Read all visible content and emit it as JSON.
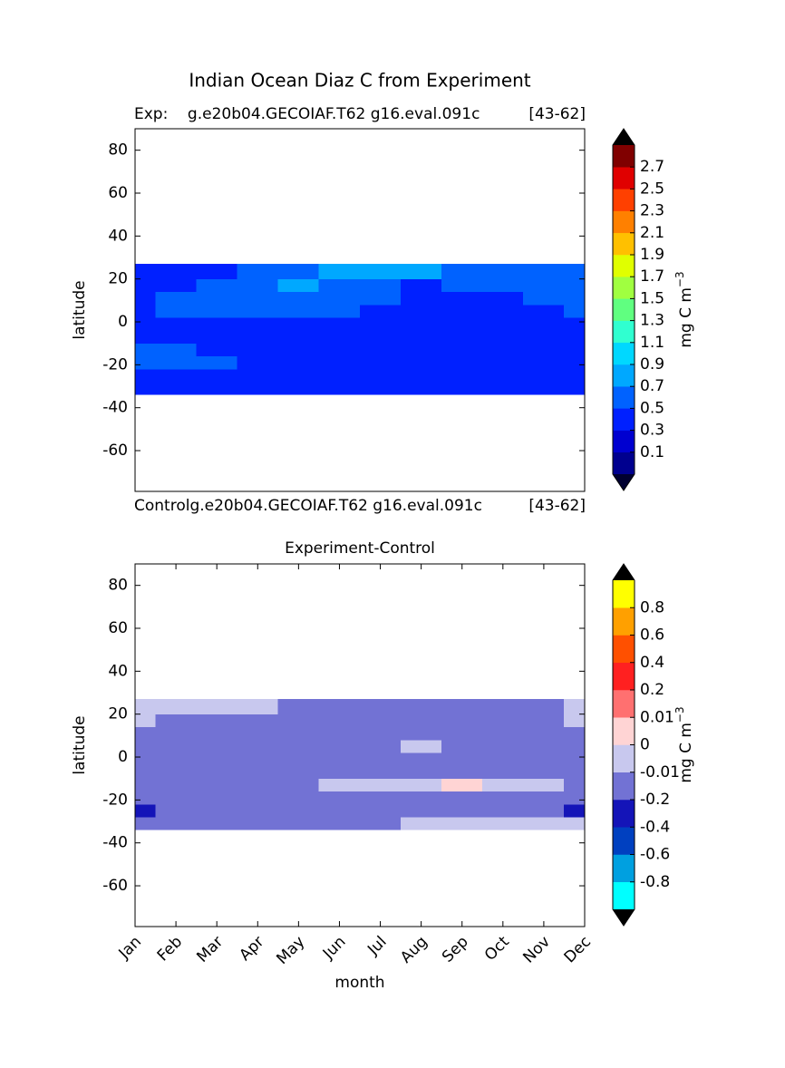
{
  "title": "Indian Ocean Diaz C from Experiment",
  "chart_data": [
    {
      "type": "contour",
      "title_left": "Exp:    g.e20b04.GECOIAF.T62 g16.eval.091c",
      "title_right": "[43-62]",
      "ylabel": "latitude",
      "xlim": [
        0,
        11
      ],
      "ylim": [
        -79,
        90
      ],
      "yticks": [
        -60,
        -40,
        -20,
        0,
        20,
        40,
        60,
        80
      ],
      "y_edges": [
        -34,
        -28,
        -22,
        -16,
        -10,
        -4,
        2,
        8,
        14,
        20,
        27
      ],
      "values": [
        [
          0.4,
          0.4,
          0.4,
          0.4,
          0.4,
          0.4,
          0.4,
          0.4,
          0.4,
          0.4,
          0.4,
          0.4
        ],
        [
          0.4,
          0.4,
          0.4,
          0.4,
          0.4,
          0.4,
          0.4,
          0.4,
          0.4,
          0.4,
          0.4,
          0.4
        ],
        [
          0.6,
          0.6,
          0.6,
          0.4,
          0.4,
          0.4,
          0.4,
          0.4,
          0.4,
          0.4,
          0.4,
          0.4
        ],
        [
          0.6,
          0.6,
          0.4,
          0.4,
          0.4,
          0.4,
          0.4,
          0.4,
          0.4,
          0.4,
          0.4,
          0.4
        ],
        [
          0.4,
          0.4,
          0.4,
          0.4,
          0.4,
          0.4,
          0.4,
          0.4,
          0.4,
          0.4,
          0.4,
          0.4
        ],
        [
          0.4,
          0.4,
          0.4,
          0.4,
          0.4,
          0.4,
          0.4,
          0.4,
          0.4,
          0.4,
          0.4,
          0.4
        ],
        [
          0.4,
          0.6,
          0.6,
          0.6,
          0.6,
          0.6,
          0.4,
          0.4,
          0.4,
          0.4,
          0.4,
          0.6
        ],
        [
          0.4,
          0.6,
          0.6,
          0.6,
          0.6,
          0.6,
          0.6,
          0.4,
          0.4,
          0.4,
          0.6,
          0.6
        ],
        [
          0.4,
          0.4,
          0.6,
          0.6,
          0.8,
          0.6,
          0.6,
          0.4,
          0.6,
          0.6,
          0.6,
          0.6
        ],
        [
          0.4,
          0.4,
          0.4,
          0.6,
          0.6,
          0.8,
          0.8,
          0.8,
          0.6,
          0.6,
          0.6,
          0.6
        ]
      ],
      "cticks": [
        0.1,
        0.3,
        0.5,
        0.7,
        0.9,
        1.1,
        1.3,
        1.5,
        1.7,
        1.9,
        2.1,
        2.3,
        2.5,
        2.7
      ],
      "colors": [
        "#00008f",
        "#0000d0",
        "#0020ff",
        "#0062ff",
        "#00a8ff",
        "#00d8ff",
        "#30ffd0",
        "#60ff80",
        "#a0ff40",
        "#e0ff00",
        "#ffc000",
        "#ff8000",
        "#ff4000",
        "#e00000",
        "#800000"
      ],
      "extend_colors": [
        "#000030",
        "#000000"
      ],
      "colorbar_label": "mg C m",
      "colorbar_label_sup": "−3"
    },
    {
      "type": "contour",
      "note_left": "Controlg.e20b04.GECOIAF.T62 g16.eval.091c",
      "note_right": "[43-62]",
      "title": "Experiment-Control",
      "xlabel": "month",
      "ylabel": "latitude",
      "categories": [
        "Jan",
        "Feb",
        "Mar",
        "Apr",
        "May",
        "Jun",
        "Jul",
        "Aug",
        "Sep",
        "Oct",
        "Nov",
        "Dec"
      ],
      "xlim": [
        0,
        11
      ],
      "ylim": [
        -79,
        90
      ],
      "yticks": [
        -60,
        -40,
        -20,
        0,
        20,
        40,
        60,
        80
      ],
      "y_edges": [
        -34,
        -28,
        -22,
        -16,
        -10,
        -4,
        2,
        8,
        14,
        20,
        27
      ],
      "values": [
        [
          -0.1,
          -0.1,
          -0.1,
          -0.1,
          -0.1,
          -0.1,
          -0.1,
          -0.005,
          -0.005,
          -0.005,
          -0.005,
          -0.005
        ],
        [
          -0.3,
          -0.1,
          -0.1,
          -0.1,
          -0.1,
          -0.1,
          -0.1,
          -0.1,
          -0.1,
          -0.1,
          -0.1,
          -0.3
        ],
        [
          -0.1,
          -0.1,
          -0.1,
          -0.1,
          -0.1,
          -0.1,
          -0.1,
          -0.1,
          -0.1,
          -0.1,
          -0.1,
          -0.1
        ],
        [
          -0.1,
          -0.1,
          -0.1,
          -0.1,
          -0.1,
          -0.005,
          -0.005,
          -0.005,
          0.005,
          -0.005,
          -0.005,
          -0.1
        ],
        [
          -0.1,
          -0.1,
          -0.1,
          -0.1,
          -0.1,
          -0.1,
          -0.1,
          -0.1,
          -0.1,
          -0.1,
          -0.1,
          -0.1
        ],
        [
          -0.1,
          -0.1,
          -0.1,
          -0.1,
          -0.1,
          -0.1,
          -0.1,
          -0.1,
          -0.1,
          -0.1,
          -0.1,
          -0.1
        ],
        [
          -0.1,
          -0.1,
          -0.1,
          -0.1,
          -0.1,
          -0.1,
          -0.1,
          -0.005,
          -0.1,
          -0.1,
          -0.1,
          -0.1
        ],
        [
          -0.1,
          -0.1,
          -0.1,
          -0.1,
          -0.1,
          -0.1,
          -0.1,
          -0.1,
          -0.1,
          -0.1,
          -0.1,
          -0.1
        ],
        [
          -0.005,
          -0.1,
          -0.1,
          -0.1,
          -0.1,
          -0.1,
          -0.1,
          -0.1,
          -0.1,
          -0.1,
          -0.1,
          -0.005
        ],
        [
          -0.005,
          -0.005,
          -0.005,
          -0.005,
          -0.1,
          -0.1,
          -0.1,
          -0.1,
          -0.1,
          -0.1,
          -0.1,
          -0.005
        ]
      ],
      "cticks": [
        -0.8,
        -0.6,
        -0.4,
        -0.2,
        -0.01,
        0,
        0.01,
        0.2,
        0.4,
        0.6,
        0.8
      ],
      "colors": [
        "#00ffff",
        "#00a0e0",
        "#0040c0",
        "#1414b8",
        "#7272d4",
        "#c8c8ee",
        "#ffd4d4",
        "#ff7070",
        "#ff2020",
        "#ff5000",
        "#ffa000",
        "#ffff00"
      ],
      "extend_colors": [
        "#000000",
        "#000000"
      ],
      "colorbar_label": "mg C m",
      "colorbar_label_sup": "−3"
    }
  ]
}
